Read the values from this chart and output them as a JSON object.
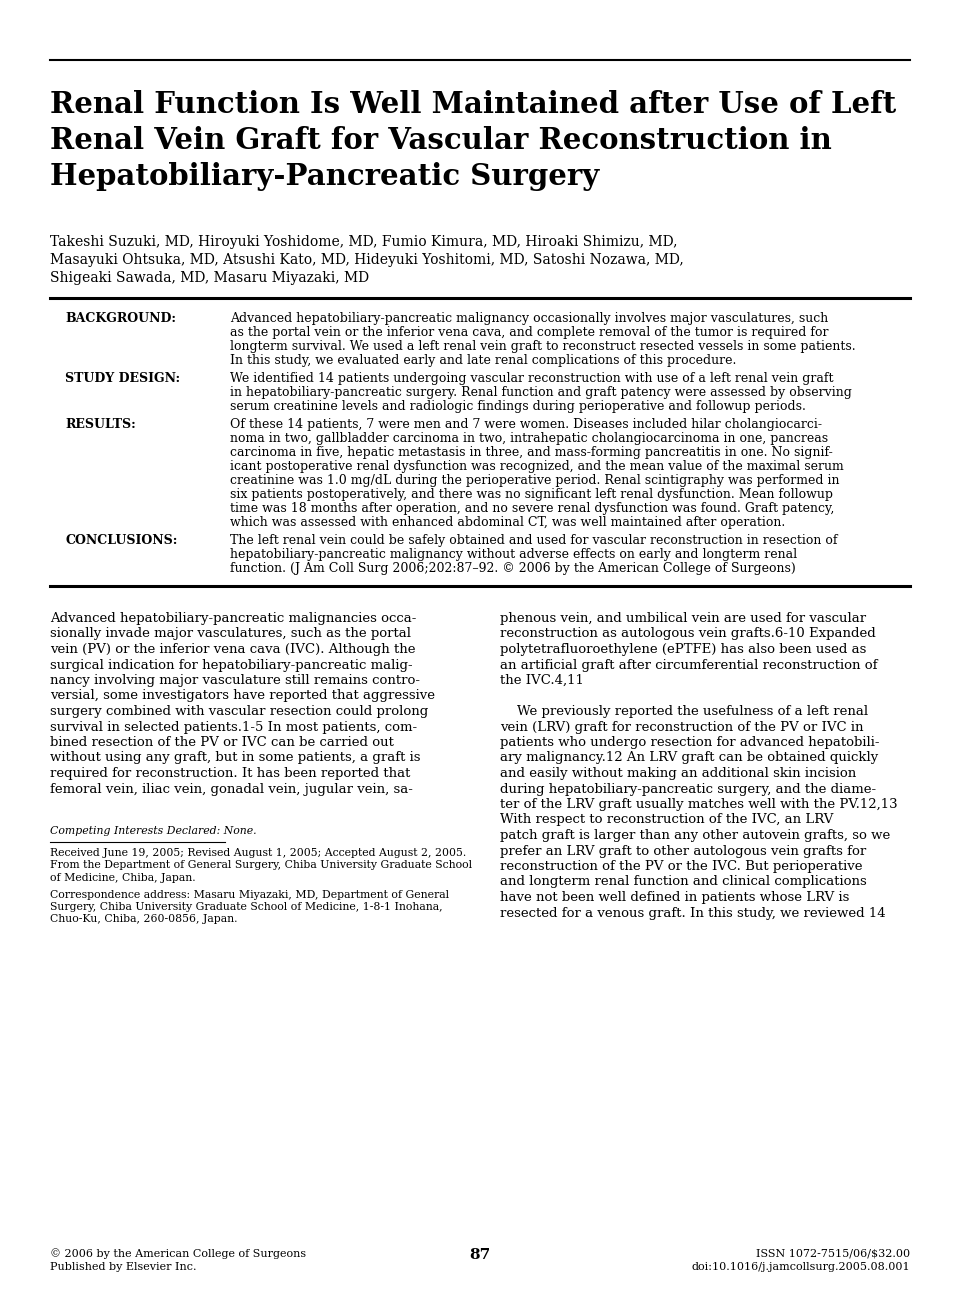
{
  "bg_color": "#ffffff",
  "title": "Renal Function Is Well Maintained after Use of Left\nRenal Vein Graft for Vascular Reconstruction in\nHepatobiliary-Pancreatic Surgery",
  "authors_line1": "Takeshi Suzuki, MD, Hiroyuki Yoshidome, MD, Fumio Kimura, MD, Hiroaki Shimizu, MD,",
  "authors_line2": "Masayuki Ohtsuka, MD, Atsushi Kato, MD, Hideyuki Yoshitomi, MD, Satoshi Nozawa, MD,",
  "authors_line3": "Shigeaki Sawada, MD, Masaru Miyazaki, MD",
  "background_label": "BACKGROUND:",
  "background_text": "Advanced hepatobiliary-pancreatic malignancy occasionally involves major vasculatures, such\nas the portal vein or the inferior vena cava, and complete removal of the tumor is required for\nlongterm survival. We used a left renal vein graft to reconstruct resected vessels in some patients.\nIn this study, we evaluated early and late renal complications of this procedure.",
  "study_design_label": "STUDY DESIGN:",
  "study_design_text": "We identified 14 patients undergoing vascular reconstruction with use of a left renal vein graft\nin hepatobiliary-pancreatic surgery. Renal function and graft patency were assessed by observing\nserum creatinine levels and radiologic findings during perioperative and followup periods.",
  "results_label": "RESULTS:",
  "results_text": "Of these 14 patients, 7 were men and 7 were women. Diseases included hilar cholangiocarci-\nnoma in two, gallbladder carcinoma in two, intrahepatic cholangiocarcinoma in one, pancreas\ncarcinoma in five, hepatic metastasis in three, and mass-forming pancreatitis in one. No signif-\nicant postoperative renal dysfunction was recognized, and the mean value of the maximal serum\ncreatinine was 1.0 mg/dL during the perioperative period. Renal scintigraphy was performed in\nsix patients postoperatively, and there was no significant left renal dysfunction. Mean followup\ntime was 18 months after operation, and no severe renal dysfunction was found. Graft patency,\nwhich was assessed with enhanced abdominal CT, was well maintained after operation.",
  "conclusions_label": "CONCLUSIONS:",
  "conclusions_text": "The left renal vein could be safely obtained and used for vascular reconstruction in resection of\nhepatobiliary-pancreatic malignancy without adverse effects on early and longterm renal\nfunction. (J Am Coll Surg 2006;202:87–92. © 2006 by the American College of Surgeons)",
  "body_col1_lines": [
    "Advanced hepatobiliary-pancreatic malignancies occa-",
    "sionally invade major vasculatures, such as the portal",
    "vein (PV) or the inferior vena cava (IVC). Although the",
    "surgical indication for hepatobiliary-pancreatic malig-",
    "nancy involving major vasculature still remains contro-",
    "versial, some investigators have reported that aggressive",
    "surgery combined with vascular resection could prolong",
    "survival in selected patients.1-5 In most patients, com-",
    "bined resection of the PV or IVC can be carried out",
    "without using any graft, but in some patients, a graft is",
    "required for reconstruction. It has been reported that",
    "femoral vein, iliac vein, gonadal vein, jugular vein, sa-"
  ],
  "body_col2_lines": [
    "phenous vein, and umbilical vein are used for vascular",
    "reconstruction as autologous vein grafts.6-10 Expanded",
    "polytetrafluoroethylene (ePTFE) has also been used as",
    "an artificial graft after circumferential reconstruction of",
    "the IVC.4,11",
    "",
    "    We previously reported the usefulness of a left renal",
    "vein (LRV) graft for reconstruction of the PV or IVC in",
    "patients who undergo resection for advanced hepatobili-",
    "ary malignancy.12 An LRV graft can be obtained quickly",
    "and easily without making an additional skin incision",
    "during hepatobiliary-pancreatic surgery, and the diame-",
    "ter of the LRV graft usually matches well with the PV.12,13",
    "With respect to reconstruction of the IVC, an LRV",
    "patch graft is larger than any other autovein grafts, so we",
    "prefer an LRV graft to other autologous vein grafts for",
    "reconstruction of the PV or the IVC. But perioperative",
    "and longterm renal function and clinical complications",
    "have not been well defined in patients whose LRV is",
    "resected for a venous graft. In this study, we reviewed 14"
  ],
  "footnote_competing": "Competing Interests Declared: None.",
  "footnote_received": "Received June 19, 2005; Revised August 1, 2005; Accepted August 2, 2005.",
  "footnote_from": "From the Department of General Surgery, Chiba University Graduate School",
  "footnote_from2": "of Medicine, Chiba, Japan.",
  "footnote_corr": "Correspondence address: Masaru Miyazaki, MD, Department of General",
  "footnote_corr2": "Surgery, Chiba University Graduate School of Medicine, 1-8-1 Inohana,",
  "footnote_corr3": "Chuo-Ku, Chiba, 260-0856, Japan.",
  "footer_left1": "© 2006 by the American College of Surgeons",
  "footer_left2": "Published by Elsevier Inc.",
  "footer_center": "87",
  "footer_right1": "ISSN 1072-7515/06/$32.00",
  "footer_right2": "doi:10.1016/j.jamcollsurg.2005.08.001"
}
